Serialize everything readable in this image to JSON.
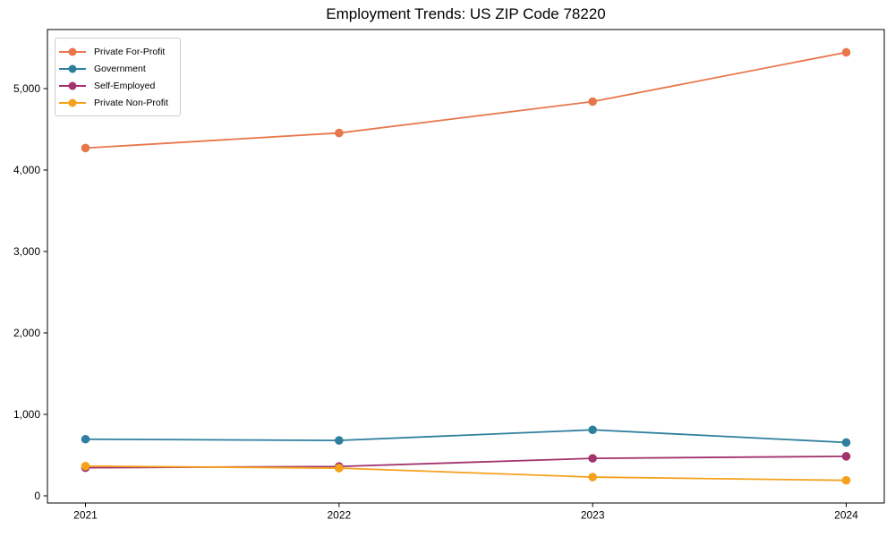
{
  "chart_data": {
    "type": "line",
    "title": "Employment Trends: US ZIP Code 78220",
    "categories": [
      2021,
      2022,
      2023,
      2024
    ],
    "x_tick_labels": [
      "2021",
      "2022",
      "2023",
      "2024"
    ],
    "y_tick_values": [
      0,
      1000,
      2000,
      3000,
      4000,
      5000
    ],
    "y_tick_labels": [
      "0",
      "1,000",
      "2,000",
      "3,000",
      "4,000",
      "5,000"
    ],
    "xlim": [
      2020.85,
      2024.15
    ],
    "ylim": [
      -88,
      5725
    ],
    "grid": false,
    "legend_position": "upper-left",
    "marker": "circle",
    "axis_color": "#000000",
    "series": [
      {
        "name": "Private For-Profit",
        "color": "#E8764B",
        "values": [
          4270,
          4455,
          4840,
          5445
        ]
      },
      {
        "name": "Government",
        "color": "#2E7F9E",
        "values": [
          695,
          680,
          810,
          655
        ]
      },
      {
        "name": "Self-Employed",
        "color": "#A2336E",
        "values": [
          345,
          360,
          460,
          485
        ]
      },
      {
        "name": "Private Non-Profit",
        "color": "#F5A11D",
        "values": [
          365,
          340,
          230,
          190
        ]
      }
    ]
  }
}
